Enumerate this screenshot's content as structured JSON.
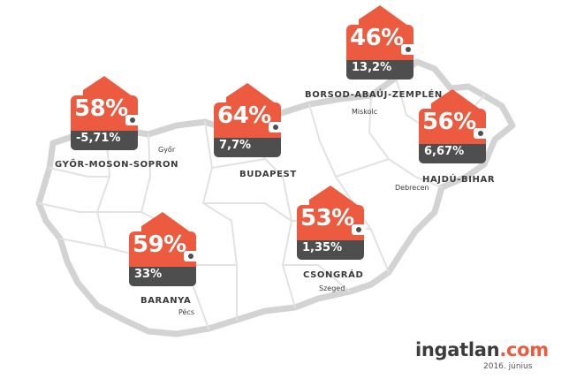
{
  "colors": {
    "accent": "#ec5a3f",
    "dark": "#4e4e4e",
    "map_border": "#cfcfcf"
  },
  "badges": [
    {
      "id": "gyor",
      "percent": "58%",
      "change": "-5,71%",
      "region": "GYŐR-MOSON-SOPRON",
      "city": "Győr"
    },
    {
      "id": "budapest",
      "percent": "64%",
      "change": "7,7%",
      "region": "BUDAPEST",
      "city": ""
    },
    {
      "id": "borsod",
      "percent": "46%",
      "change": "13,2%",
      "region": "BORSOD-ABAÚJ-ZEMPLÉN",
      "city": "Miskolc"
    },
    {
      "id": "hajdu",
      "percent": "56%",
      "change": "6,67%",
      "region": "HAJDÚ-BIHAR",
      "city": "Debrecen"
    },
    {
      "id": "baranya",
      "percent": "59%",
      "change": "33%",
      "region": "BARANYA",
      "city": "Pécs"
    },
    {
      "id": "csongrad",
      "percent": "53%",
      "change": "1,35%",
      "region": "CSONGRÁD",
      "city": "Szeged"
    }
  ],
  "brand": {
    "name": "ingatlan",
    "tld": ".com",
    "date": "2016. június"
  }
}
